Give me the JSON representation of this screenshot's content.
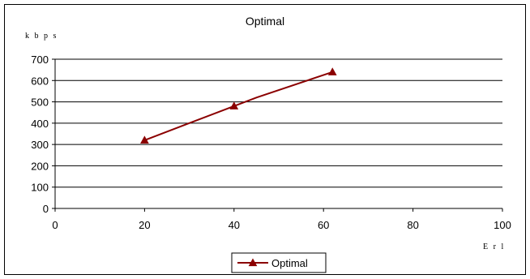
{
  "chart_data": {
    "type": "line",
    "title": "Optimal",
    "ylabel": "kbps",
    "xlabel": "Erl",
    "xlim": [
      0,
      100
    ],
    "ylim": [
      0,
      700
    ],
    "x_ticks": [
      0,
      20,
      40,
      60,
      80,
      100
    ],
    "y_ticks": [
      0,
      100,
      200,
      300,
      400,
      500,
      600,
      700
    ],
    "grid": "horizontal",
    "legend_position": "bottom",
    "series": [
      {
        "name": "Optimal",
        "color": "#8B0000",
        "marker": "triangle",
        "x": [
          20,
          30,
          40,
          45,
          62
        ],
        "y": [
          320,
          400,
          480,
          520,
          640
        ],
        "marker_x": [
          20,
          40,
          62
        ],
        "marker_y": [
          320,
          480,
          640
        ]
      }
    ]
  }
}
